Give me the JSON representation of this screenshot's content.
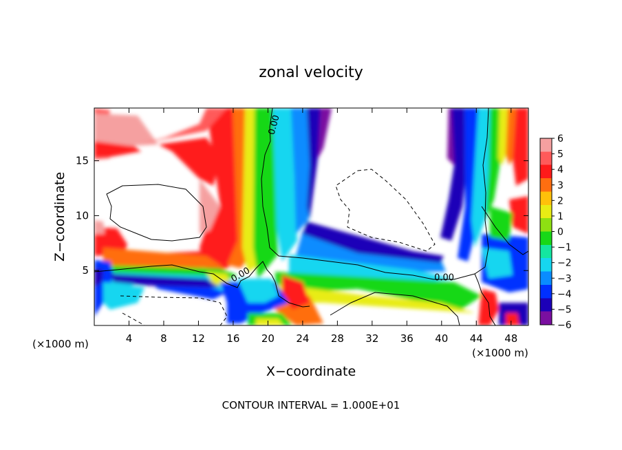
{
  "chart_data": {
    "type": "heatmap",
    "title": "zonal velocity",
    "xlabel": "X−coordinate",
    "ylabel": "Z−coordinate",
    "xunit_left": "(×1000 m)",
    "xunit_right": "(×1000 m)",
    "footer": "CONTOUR INTERVAL = 1.000E+01",
    "xlim": [
      0,
      50
    ],
    "ylim": [
      0,
      19.8
    ],
    "x_ticks": [
      4,
      8,
      12,
      16,
      20,
      24,
      28,
      32,
      36,
      40,
      44,
      48
    ],
    "y_ticks": [
      5,
      10,
      15
    ],
    "colorbar": {
      "ticks": [
        6,
        5,
        4,
        3,
        2,
        1,
        0,
        -1,
        -2,
        -3,
        -4,
        -5,
        -6
      ],
      "tick_labels": [
        "6",
        "5",
        "4",
        "3",
        "2",
        "1",
        "0",
        "−1",
        "−2",
        "−3",
        "−4",
        "−5",
        "−6"
      ],
      "range": [
        -6,
        6
      ],
      "colors": [
        "#7a0fa0",
        "#1c00b8",
        "#0030ff",
        "#0a8cff",
        "#16d6f0",
        "#14e6a0",
        "#18d818",
        "#8ee012",
        "#e8ec14",
        "#ffc00a",
        "#ff6e10",
        "#ff1a1a",
        "#ff5a5a",
        "#f5a0a0"
      ]
    },
    "contours": [
      {
        "label": "0.00",
        "label_at": [
          21,
          18.2
        ]
      },
      {
        "label": "0.00",
        "label_at": [
          17,
          4.4
        ]
      },
      {
        "label": "0.00",
        "label_at": [
          40.3,
          4.1
        ]
      }
    ],
    "white_regions": "values outside the ±6 colour range are left unshaded",
    "grid": false
  }
}
